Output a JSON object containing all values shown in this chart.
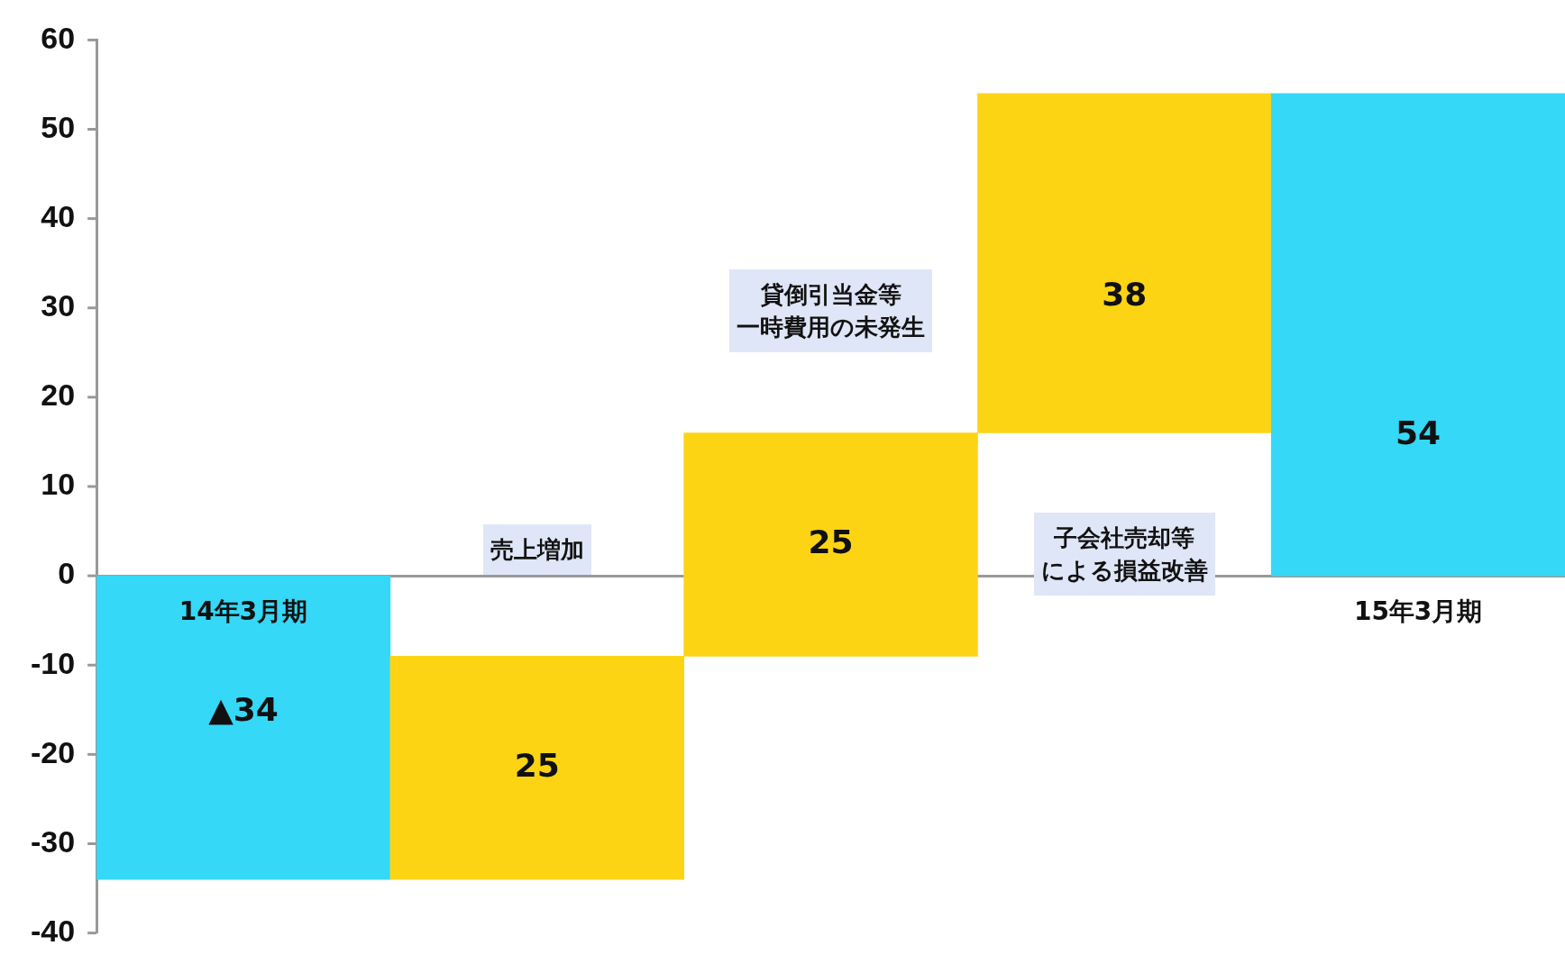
{
  "chart_data": {
    "type": "bar",
    "categories": [
      "14年3月期",
      null,
      null,
      null,
      "15年3月期"
    ],
    "base": [
      0,
      -34,
      -9,
      16,
      0
    ],
    "values": [
      -34,
      25,
      25,
      38,
      54
    ],
    "colors": [
      "#35d8f7",
      "#fcd414",
      "#fcd414",
      "#fcd414",
      "#35d8f7"
    ],
    "value_labels": [
      "▲34",
      "25",
      "25",
      "38",
      "54"
    ],
    "ylim": [
      -40,
      60
    ],
    "yticks": [
      -40,
      -30,
      -20,
      -10,
      0,
      10,
      20,
      30,
      40,
      50,
      60
    ],
    "grid": false,
    "legend": false,
    "annotations": [
      "売上増加",
      "貸倒引当金等一時費用の未発生",
      "子会社売却等による損益改善"
    ]
  }
}
